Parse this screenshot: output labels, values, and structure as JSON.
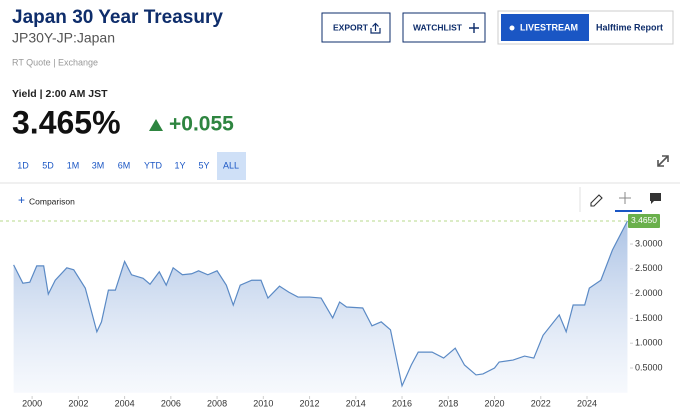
{
  "header": {
    "title": "Japan 30 Year Treasury",
    "symbol": "JP30Y-JP:Japan",
    "quote_type": "RT Quote | Exchange"
  },
  "buttons": {
    "export": "EXPORT",
    "watchlist": "WATCHLIST",
    "livestream": "LIVESTREAM",
    "halftime": "Halftime Report"
  },
  "quote": {
    "yield_label": "Yield | 2:00 AM JST",
    "price": "3.465%",
    "change": "+0.055"
  },
  "ranges": [
    "1D",
    "5D",
    "1M",
    "3M",
    "6M",
    "YTD",
    "1Y",
    "5Y",
    "ALL"
  ],
  "active_range": "ALL",
  "comparison": "Comparison",
  "chart_data": {
    "type": "area",
    "x": [
      1999.2,
      1999.6,
      1999.9,
      2000.2,
      2000.5,
      2000.7,
      2001.0,
      2001.5,
      2001.8,
      2002.3,
      2002.8,
      2003.0,
      2003.3,
      2003.6,
      2004.0,
      2004.3,
      2004.8,
      2005.1,
      2005.5,
      2005.8,
      2006.1,
      2006.5,
      2006.9,
      2007.2,
      2007.6,
      2008.0,
      2008.4,
      2008.7,
      2009.0,
      2009.5,
      2009.9,
      2010.2,
      2010.7,
      2011.1,
      2011.5,
      2012.0,
      2012.5,
      2013.0,
      2013.3,
      2013.6,
      2014.3,
      2014.7,
      2015.1,
      2015.5,
      2016.0,
      2016.4,
      2016.7,
      2017.3,
      2017.8,
      2018.3,
      2018.7,
      2019.2,
      2019.5,
      2020.0,
      2020.2,
      2020.8,
      2021.3,
      2021.7,
      2022.1,
      2022.8,
      2023.1,
      2023.4,
      2023.9,
      2024.1,
      2024.6,
      2025.1,
      2025.5,
      2025.75
    ],
    "values": [
      2.58,
      2.21,
      2.23,
      2.56,
      2.56,
      1.99,
      2.27,
      2.52,
      2.48,
      2.11,
      1.23,
      1.43,
      2.07,
      2.07,
      2.65,
      2.38,
      2.31,
      2.19,
      2.44,
      2.17,
      2.52,
      2.38,
      2.4,
      2.46,
      2.38,
      2.46,
      2.17,
      1.77,
      2.17,
      2.27,
      2.27,
      1.91,
      2.15,
      2.03,
      1.93,
      1.93,
      1.91,
      1.51,
      1.83,
      1.73,
      1.71,
      1.35,
      1.43,
      1.27,
      0.14,
      0.56,
      0.82,
      0.82,
      0.7,
      0.9,
      0.56,
      0.36,
      0.38,
      0.5,
      0.62,
      0.66,
      0.74,
      0.7,
      1.16,
      1.57,
      1.23,
      1.77,
      1.77,
      2.11,
      2.27,
      2.88,
      3.24,
      3.465
    ],
    "color": "#5b8ac5",
    "xlim": [
      1999.13,
      2025.86
    ],
    "ylim": [
      -0.065,
      3.65
    ],
    "xticks": [
      2000,
      2002,
      2004,
      2006,
      2008,
      2010,
      2012,
      2014,
      2016,
      2018,
      2020,
      2022,
      2024
    ],
    "yticks": [
      {
        "value": 0.5,
        "label": "0.5000"
      },
      {
        "value": 1.0,
        "label": "1.0000"
      },
      {
        "value": 1.5,
        "label": "1.5000"
      },
      {
        "value": 2.0,
        "label": "2.0000"
      },
      {
        "value": 2.5,
        "label": "2.5000"
      },
      {
        "value": 3.0,
        "label": "3.0000"
      }
    ],
    "last_marker": {
      "value": 3.465,
      "label": "3.4650"
    },
    "grid": false
  }
}
